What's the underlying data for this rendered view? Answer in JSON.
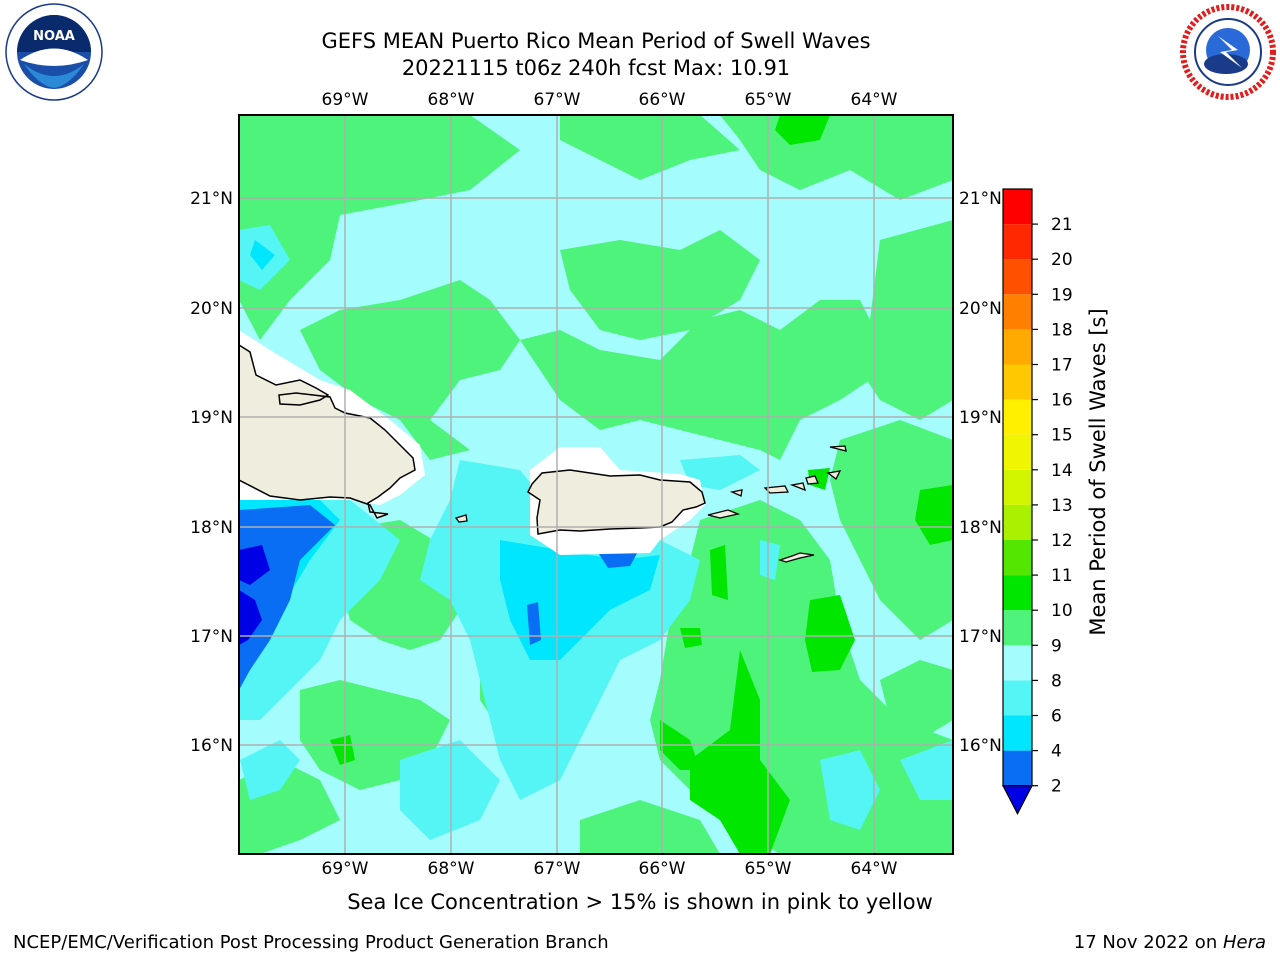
{
  "header": {
    "title_line1": "GEFS MEAN Puerto Rico Mean Period of Swell Waves",
    "title_line2": "20221115 t06z 240h fcst   Max: 10.91"
  },
  "logos": {
    "left": {
      "icon": "noaa-logo",
      "text": "NOAA",
      "ring_text": "NATIONAL OCEANIC AND ATMOSPHERIC ADMINISTRATION · U.S. DEPARTMENT OF COMMERCE"
    },
    "right": {
      "icon": "nws-logo",
      "ring_text": "NATIONAL WEATHER SERVICE"
    }
  },
  "map": {
    "lon_ticks": [
      "69°W",
      "68°W",
      "67°W",
      "66°W",
      "65°W",
      "64°W"
    ],
    "lat_ticks": [
      "21°N",
      "20°N",
      "19°N",
      "18°N",
      "17°N",
      "16°N"
    ],
    "lon_range": [
      -70.0,
      -63.25
    ],
    "lat_range": [
      15.0,
      21.75
    ],
    "colors": {
      "land": "#efedde",
      "coast": "#000000",
      "grid": "#b0b0b0"
    }
  },
  "colorbar": {
    "label": "Mean Period of Swell Waves [s]",
    "ticks": [
      "2",
      "4",
      "6",
      "8",
      "9",
      "10",
      "11",
      "12",
      "13",
      "14",
      "15",
      "16",
      "17",
      "18",
      "19",
      "20",
      "21"
    ],
    "bins": [
      {
        "range": "<2",
        "color": "#0000e6"
      },
      {
        "range": "2-4",
        "color": "#0a6ef5"
      },
      {
        "range": "4-6",
        "color": "#00e6ff"
      },
      {
        "range": "6-8",
        "color": "#55f5f5"
      },
      {
        "range": "8-9",
        "color": "#a5fcfc"
      },
      {
        "range": "9-10",
        "color": "#4df37a"
      },
      {
        "range": "10-11",
        "color": "#00e600"
      },
      {
        "range": "11-12",
        "color": "#55e600"
      },
      {
        "range": "12-13",
        "color": "#aaf000"
      },
      {
        "range": "13-14",
        "color": "#d2f500"
      },
      {
        "range": "14-15",
        "color": "#f0f500"
      },
      {
        "range": "15-16",
        "color": "#fff000"
      },
      {
        "range": "16-17",
        "color": "#ffc800"
      },
      {
        "range": "17-18",
        "color": "#ffaa00"
      },
      {
        "range": "18-19",
        "color": "#ff8000"
      },
      {
        "range": "19-20",
        "color": "#ff5000"
      },
      {
        "range": "20-21",
        "color": "#ff2800"
      },
      {
        "range": ">21",
        "color": "#ff0000"
      }
    ]
  },
  "note": "Sea Ice Concentration > 15% is shown in pink to yellow",
  "footer": {
    "left": "NCEP/EMC/Verification Post Processing Product Generation Branch",
    "right_date": "17 Nov 2022 on ",
    "right_host": "Hera"
  }
}
